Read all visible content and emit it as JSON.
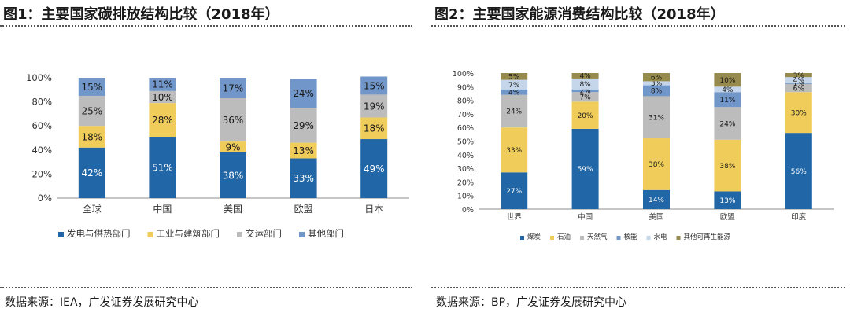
{
  "colors": {
    "coal": "#2166a6",
    "oil": "#f0cd5a",
    "gas": "#bcbcbc",
    "nuclear": "#7196c9",
    "hydro": "#c5d6ea",
    "other_renewable": "#978a4d"
  },
  "left": {
    "title": "图1：主要国家碳排放结构比较（2018年）",
    "source": "数据来源：IEA，广发证券发展研究中心"
  },
  "right": {
    "title": "图2：主要国家能源消费结构比较（2018年）",
    "source": "数据来源：BP，广发证券发展研究中心"
  },
  "chart_data": [
    {
      "type": "bar",
      "stacked": true,
      "title": "主要国家碳排放结构比较（2018年）",
      "categories": [
        "全球",
        "中国",
        "美国",
        "欧盟",
        "日本"
      ],
      "ylim": [
        0,
        100
      ],
      "yticks": [
        "0%",
        "20%",
        "40%",
        "60%",
        "80%",
        "100%"
      ],
      "legend_position": "bottom",
      "series": [
        {
          "name": "发电与供热部门",
          "color_key": "coal",
          "values": [
            42,
            51,
            38,
            33,
            49
          ],
          "labels": [
            "42%",
            "51%",
            "38%",
            "33%",
            "49%"
          ]
        },
        {
          "name": "工业与建筑部门",
          "color_key": "oil",
          "values": [
            18,
            28,
            9,
            13,
            18
          ],
          "labels": [
            "18%",
            "28%",
            "9%",
            "13%",
            "18%"
          ]
        },
        {
          "name": "交运部门",
          "color_key": "gas",
          "values": [
            25,
            10,
            36,
            29,
            19
          ],
          "labels": [
            "25%",
            "10%",
            "36%",
            "29%",
            "19%"
          ]
        },
        {
          "name": "其他部门",
          "color_key": "nuclear",
          "values": [
            15,
            11,
            17,
            24,
            15
          ],
          "labels": [
            "15%",
            "11%",
            "17%",
            "24%",
            "15%"
          ]
        }
      ]
    },
    {
      "type": "bar",
      "stacked": true,
      "title": "主要国家能源消费结构比较（2018年）",
      "categories": [
        "世界",
        "中国",
        "美国",
        "欧盟",
        "印度"
      ],
      "ylim": [
        0,
        100
      ],
      "yticks": [
        "0%",
        "10%",
        "20%",
        "30%",
        "40%",
        "50%",
        "60%",
        "70%",
        "80%",
        "90%",
        "100%"
      ],
      "legend_position": "bottom",
      "series": [
        {
          "name": "煤炭",
          "color_key": "coal",
          "values": [
            27,
            59,
            14,
            13,
            56
          ],
          "labels": [
            "27%",
            "59%",
            "14%",
            "13%",
            "56%"
          ]
        },
        {
          "name": "石油",
          "color_key": "oil",
          "values": [
            33,
            20,
            38,
            38,
            30
          ],
          "labels": [
            "33%",
            "20%",
            "38%",
            "38%",
            "30%"
          ]
        },
        {
          "name": "天然气",
          "color_key": "gas",
          "values": [
            24,
            7,
            31,
            24,
            6
          ],
          "labels": [
            "24%",
            "7%",
            "31%",
            "24%",
            "6%"
          ]
        },
        {
          "name": "核能",
          "color_key": "nuclear",
          "values": [
            4,
            2,
            8,
            11,
            1
          ],
          "labels": [
            "4%",
            "2%",
            "8%",
            "11%",
            "1%"
          ]
        },
        {
          "name": "水电",
          "color_key": "hydro",
          "values": [
            7,
            8,
            3,
            4,
            4
          ],
          "labels": [
            "7%",
            "8%",
            "3%",
            "4%",
            "4%"
          ]
        },
        {
          "name": "其他可再生能源",
          "color_key": "other_renewable",
          "values": [
            5,
            4,
            6,
            10,
            3
          ],
          "labels": [
            "5%",
            "4%",
            "6%",
            "10%",
            "3%"
          ]
        }
      ]
    }
  ]
}
